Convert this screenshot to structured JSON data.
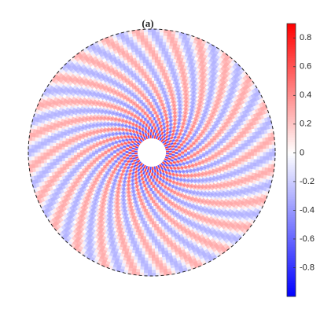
{
  "chart_data": {
    "type": "polar-field",
    "title": "(a)",
    "colorbar": {
      "clim": [
        -1.0,
        0.9
      ],
      "ticks": [
        0.8,
        0.6,
        0.4,
        0.2,
        0,
        -0.2,
        -0.4,
        -0.6,
        -0.8
      ]
    }
  }
}
